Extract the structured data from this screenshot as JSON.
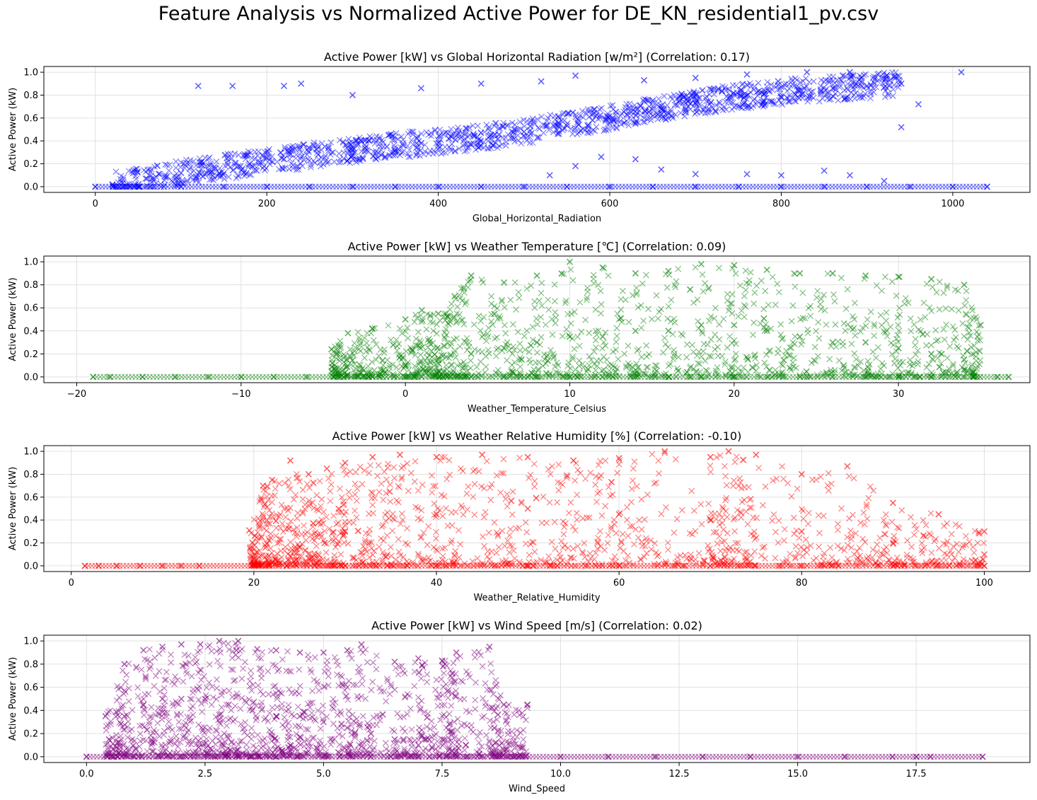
{
  "figure": {
    "suptitle": "Feature Analysis vs Normalized Active Power for DE_KN_residential1_pv.csv"
  },
  "chart_data": [
    {
      "type": "scatter",
      "title": "Active Power [kW] vs Global Horizontal Radiation [w/m²] (Correlation: 0.17)",
      "xlabel": "Global_Horizontal_Radiation",
      "ylabel": "Active Power (kW)",
      "xlim": [
        -60,
        1090
      ],
      "ylim": [
        -0.05,
        1.05
      ],
      "xticks": [
        0,
        200,
        400,
        600,
        800,
        1000
      ],
      "xtick_labels": [
        "0",
        "200",
        "400",
        "600",
        "800",
        "1000"
      ],
      "yticks": [
        0.0,
        0.2,
        0.4,
        0.6,
        0.8,
        1.0
      ],
      "ytick_labels": [
        "0.0",
        "0.2",
        "0.4",
        "0.6",
        "0.8",
        "1.0"
      ],
      "grid": true,
      "marker": "x",
      "color": "#0000ff",
      "series": [
        {
          "x": [
            0,
            50,
            100,
            150,
            200,
            250,
            300,
            350,
            400,
            450,
            500,
            550,
            600,
            650,
            700,
            750,
            800,
            850,
            900,
            950,
            1000,
            1040
          ],
          "y": [
            0,
            0,
            0,
            0,
            0,
            0,
            0,
            0,
            0,
            0,
            0,
            0,
            0,
            0,
            0,
            0,
            0,
            0,
            0,
            0,
            0,
            0
          ]
        },
        {
          "x": [
            20,
            60,
            100,
            140,
            180,
            220,
            260,
            300,
            340,
            380,
            420,
            460,
            500,
            540,
            580,
            620,
            660,
            700,
            740,
            780,
            820,
            860,
            900,
            940
          ],
          "y": [
            0.02,
            0.07,
            0.12,
            0.16,
            0.2,
            0.24,
            0.28,
            0.32,
            0.35,
            0.38,
            0.41,
            0.44,
            0.48,
            0.53,
            0.58,
            0.63,
            0.68,
            0.73,
            0.78,
            0.81,
            0.84,
            0.86,
            0.88,
            0.9
          ]
        },
        {
          "x": [
            120,
            160,
            220,
            240,
            300,
            380,
            450,
            520,
            560,
            640,
            700,
            760,
            830,
            880,
            1010,
            940,
            960
          ],
          "y": [
            0.88,
            0.88,
            0.88,
            0.9,
            0.8,
            0.86,
            0.9,
            0.92,
            0.97,
            0.93,
            0.95,
            0.98,
            1.0,
            1.0,
            1.0,
            0.52,
            0.72
          ]
        },
        {
          "x": [
            530,
            560,
            590,
            630,
            660,
            700,
            760,
            800,
            850,
            880,
            920
          ],
          "y": [
            0.1,
            0.18,
            0.26,
            0.24,
            0.15,
            0.11,
            0.11,
            0.1,
            0.14,
            0.1,
            0.05
          ]
        }
      ]
    },
    {
      "type": "scatter",
      "title": "Active Power [kW] vs Weather Temperature [℃] (Correlation: 0.09)",
      "xlabel": "Weather_Temperature_Celsius",
      "ylabel": "Active Power (kW)",
      "xlim": [
        -22,
        38
      ],
      "ylim": [
        -0.05,
        1.05
      ],
      "xticks": [
        -20,
        -10,
        0,
        10,
        20,
        30
      ],
      "xtick_labels": [
        "−20",
        "−10",
        "0",
        "10",
        "20",
        "30"
      ],
      "yticks": [
        0.0,
        0.2,
        0.4,
        0.6,
        0.8,
        1.0
      ],
      "ytick_labels": [
        "0.0",
        "0.2",
        "0.4",
        "0.6",
        "0.8",
        "1.0"
      ],
      "grid": true,
      "marker": "x",
      "color": "#008000",
      "series": [
        {
          "x": [
            -19,
            -18,
            -16,
            -14,
            -12,
            -10,
            -8,
            -6,
            -4,
            -2,
            0,
            2,
            4,
            6,
            8,
            10,
            12,
            14,
            16,
            18,
            20,
            22,
            24,
            26,
            28,
            30,
            32,
            34,
            36,
            36.7
          ],
          "y": [
            0,
            0,
            0,
            0,
            0,
            0,
            0,
            0,
            0,
            0,
            0,
            0,
            0,
            0,
            0,
            0,
            0,
            0,
            0,
            0,
            0,
            0,
            0,
            0,
            0,
            0,
            0,
            0,
            0,
            0
          ]
        },
        {
          "x": [
            -4.5,
            -3.5,
            -2,
            0,
            1,
            2,
            3,
            4,
            6,
            8,
            10,
            12,
            14,
            16,
            18,
            20,
            22,
            24,
            26,
            28,
            30,
            32,
            34,
            35
          ],
          "y": [
            0.24,
            0.38,
            0.42,
            0.5,
            0.58,
            0.55,
            0.7,
            0.88,
            0.82,
            0.88,
            1.0,
            0.95,
            0.9,
            0.92,
            0.98,
            0.97,
            0.93,
            0.9,
            0.9,
            0.88,
            0.87,
            0.85,
            0.8,
            0.45
          ]
        },
        {
          "x": [
            0,
            2,
            4,
            6,
            8,
            10,
            12,
            14,
            16,
            18,
            20,
            22,
            24,
            26,
            28,
            30,
            32,
            34
          ],
          "y": [
            0.1,
            0.15,
            0.2,
            0.25,
            0.3,
            0.35,
            0.35,
            0.4,
            0.4,
            0.45,
            0.45,
            0.4,
            0.35,
            0.3,
            0.3,
            0.25,
            0.2,
            0.15
          ]
        }
      ]
    },
    {
      "type": "scatter",
      "title": "Active Power [kW] vs Weather Relative Humidity [%] (Correlation: -0.10)",
      "xlabel": "Weather_Relative_Humidity",
      "ylabel": "Active Power (kW)",
      "xlim": [
        -3,
        105
      ],
      "ylim": [
        -0.05,
        1.05
      ],
      "xticks": [
        0,
        20,
        40,
        60,
        80,
        100
      ],
      "xtick_labels": [
        "0",
        "20",
        "40",
        "60",
        "80",
        "100"
      ],
      "yticks": [
        0.0,
        0.2,
        0.4,
        0.6,
        0.8,
        1.0
      ],
      "ytick_labels": [
        "0.0",
        "0.2",
        "0.4",
        "0.6",
        "0.8",
        "1.0"
      ],
      "grid": true,
      "marker": "x",
      "color": "#ff0000",
      "series": [
        {
          "x": [
            1.5,
            3,
            5,
            7.5,
            10,
            12,
            14,
            20,
            30,
            40,
            50,
            60,
            70,
            80,
            90,
            100
          ],
          "y": [
            0,
            0,
            0,
            0,
            0,
            0,
            0,
            0,
            0,
            0,
            0,
            0,
            0,
            0,
            0,
            0
          ]
        },
        {
          "x": [
            19.5,
            21,
            22,
            24,
            26,
            28,
            30,
            33,
            36,
            40,
            45,
            50,
            55,
            60,
            65,
            70,
            72,
            75,
            80,
            85,
            90,
            95,
            100
          ],
          "y": [
            0.31,
            0.7,
            0.75,
            0.92,
            0.8,
            0.85,
            0.9,
            0.95,
            0.97,
            0.95,
            0.97,
            0.95,
            0.92,
            0.94,
            1.0,
            0.95,
            1.0,
            0.97,
            0.8,
            0.87,
            0.55,
            0.45,
            0.3
          ]
        },
        {
          "x": [
            30,
            40,
            50,
            60,
            70,
            80,
            90,
            100
          ],
          "y": [
            0.3,
            0.45,
            0.5,
            0.45,
            0.4,
            0.3,
            0.2,
            0.1
          ]
        }
      ]
    },
    {
      "type": "scatter",
      "title": "Active Power [kW] vs Wind Speed [m/s] (Correlation: 0.02)",
      "xlabel": "Wind_Speed",
      "ylabel": "Active Power (kW)",
      "xlim": [
        -0.9,
        19.9
      ],
      "ylim": [
        -0.05,
        1.05
      ],
      "xticks": [
        0.0,
        2.5,
        5.0,
        7.5,
        10.0,
        12.5,
        15.0,
        17.5
      ],
      "xtick_labels": [
        "0.0",
        "2.5",
        "5.0",
        "7.5",
        "10.0",
        "12.5",
        "15.0",
        "17.5"
      ],
      "yticks": [
        0.0,
        0.2,
        0.4,
        0.6,
        0.8,
        1.0
      ],
      "ytick_labels": [
        "0.0",
        "0.2",
        "0.4",
        "0.6",
        "0.8",
        "1.0"
      ],
      "grid": true,
      "marker": "x",
      "color": "#800080",
      "series": [
        {
          "x": [
            0,
            1,
            2,
            3,
            4,
            5,
            6,
            7,
            8,
            9,
            10,
            11,
            12,
            13,
            14,
            15,
            16,
            17,
            17.5,
            17.8,
            18.9
          ],
          "y": [
            0,
            0,
            0,
            0,
            0,
            0,
            0,
            0,
            0,
            0,
            0,
            0,
            0,
            0,
            0,
            0,
            0,
            0,
            0,
            0,
            0
          ]
        },
        {
          "x": [
            0.4,
            0.8,
            1.2,
            1.6,
            2.0,
            2.4,
            2.8,
            3.2,
            3.6,
            4.0,
            4.5,
            5.0,
            5.5,
            5.8,
            6.5,
            7.0,
            7.5,
            7.8,
            8.5,
            8.8,
            9.3
          ],
          "y": [
            0.35,
            0.8,
            0.92,
            0.95,
            0.97,
            0.97,
            1.0,
            1.0,
            0.93,
            0.92,
            0.9,
            0.9,
            0.92,
            0.97,
            0.82,
            0.85,
            0.83,
            0.9,
            0.95,
            0.45,
            0.45
          ]
        },
        {
          "x": [
            0.8,
            1.2,
            1.6,
            2.0,
            2.5,
            3.0,
            3.5,
            4.0,
            4.5,
            5.0,
            5.5,
            6.0,
            6.5,
            7.0,
            7.5,
            8.0
          ],
          "y": [
            0.35,
            0.45,
            0.5,
            0.5,
            0.5,
            0.45,
            0.4,
            0.35,
            0.35,
            0.3,
            0.25,
            0.2,
            0.15,
            0.1,
            0.15,
            0.1
          ]
        }
      ]
    }
  ]
}
